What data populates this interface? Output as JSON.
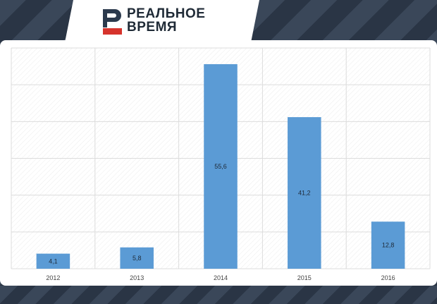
{
  "brand": {
    "line1": "РЕАЛЬНОЕ",
    "line2": "ВРЕМЯ",
    "logo_letter": "Р"
  },
  "colors": {
    "bar": "#5b9bd5",
    "grid": "#dcdcdc",
    "logo_dark": "#2b3a4d",
    "logo_red": "#d6332c"
  },
  "chart_data": {
    "type": "bar",
    "title": "",
    "xlabel": "",
    "ylabel": "",
    "categories": [
      "2012",
      "2013",
      "2014",
      "2015",
      "2016"
    ],
    "values": [
      4.1,
      5.8,
      55.6,
      41.2,
      12.8
    ],
    "value_labels": [
      "4,1",
      "5,8",
      "55,6",
      "41,2",
      "12,8"
    ],
    "ylim": [
      0,
      60
    ],
    "grid": true,
    "legend": "none"
  }
}
